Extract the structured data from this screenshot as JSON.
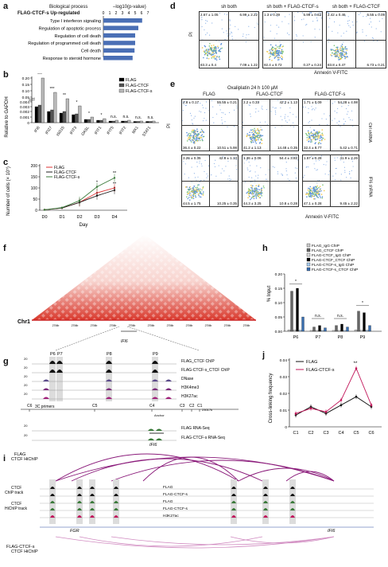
{
  "panels": {
    "a": "a",
    "b": "b",
    "c": "c",
    "d": "d",
    "e": "e",
    "f": "f",
    "g": "g",
    "h": "h",
    "i": "i",
    "j": "j"
  },
  "panel_a": {
    "header_process": "Biological process",
    "header_pval": "–log10(p-value)",
    "row_label": "FLAG-CTCF-s Up-regulated",
    "ticks": [
      "0",
      "1",
      "2",
      "3",
      "4",
      "5",
      "6",
      "7"
    ],
    "chart_data": {
      "type": "bar",
      "categories": [
        "Type I interferon signaling",
        "Regulation of apoptotic process",
        "Regulation of cell death",
        "Regulation of programmed cell death",
        "Cell death",
        "Response to steroid hormone"
      ],
      "values": [
        6.1,
        5.5,
        5.0,
        5.0,
        4.9,
        4.6
      ],
      "xlim": [
        0,
        7
      ],
      "bar_color": "#4a6fb5"
    }
  },
  "panel_b": {
    "ylabel": "Relative to GAPDH",
    "yticks": [
      "0.20",
      "0.15",
      "0.10",
      "0.05",
      "0.004",
      "0.003",
      "0.002",
      "0.001",
      "0"
    ],
    "legend": [
      "FLAG",
      "FLAG-CTCF",
      "FLAG-CTCF-s"
    ],
    "genes": [
      "IFI6",
      "IFI27",
      "ISG15",
      "IFIT3",
      "OASL",
      "IFIT1",
      "IFIT5",
      "IFIT2",
      "MX1",
      "STAT1"
    ],
    "sig": [
      "***",
      "***",
      "**",
      "*",
      "*",
      "*",
      "n.s.",
      "n.s.",
      "n.s.",
      "n.s."
    ],
    "colors": {
      "flag": "#000000",
      "ctcf": "#555555",
      "ctcfs": "#bbbbbb"
    }
  },
  "panel_c": {
    "ylabel": "Number of cells (× 10⁵)",
    "xlabel": "Day",
    "legend": [
      "FLAG",
      "FLAG-CTCF",
      "FLAG-CTCF-s"
    ],
    "sig": [
      "**",
      "*",
      "**",
      "*"
    ],
    "chart_data": {
      "type": "line",
      "x": [
        "D0",
        "D1",
        "D2",
        "D3",
        "D4"
      ],
      "yticks": [
        0,
        50,
        100,
        150,
        200
      ],
      "ylim": [
        0,
        200
      ],
      "series": [
        {
          "name": "FLAG",
          "values": [
            2,
            10,
            35,
            78,
            100
          ],
          "color": "#d33"
        },
        {
          "name": "FLAG-CTCF",
          "values": [
            2,
            10,
            35,
            65,
            90
          ],
          "color": "#222"
        },
        {
          "name": "FLAG-CTCF-s",
          "values": [
            2,
            12,
            43,
            105,
            145
          ],
          "color": "#3a7a3a"
        }
      ]
    }
  },
  "panel_d": {
    "titles": [
      "sh both",
      "sh both + FLAG-CTCF-s",
      "sh both + FLAG-CTCF"
    ],
    "ylabel": "PI",
    "xlabel": "Annexin V-FITC",
    "quads": [
      [
        "2.67 ± 1.05",
        "6.99 ± 2.22",
        "83.3 ± 0.4",
        "7.09 ± 1.22"
      ],
      [
        "1.3 ± 0.39",
        "5.99 ± 0.62",
        "92.4 ± 0.72",
        "0.27 ± 0.24"
      ],
      [
        "2.42 ± 0.46",
        "6.55 ± 0.05",
        "83.8 ± 0.47",
        "6.73 ± 0.21"
      ]
    ]
  },
  "panel_e": {
    "treatment": "Oxaliplatin 24 h 100 μM",
    "titles": [
      "FLAG",
      "FLAG-CTCF",
      "FLAG-CTCF-s"
    ],
    "rows": [
      "Ctrl shRNA",
      "IFI6 shRNA"
    ],
    "ylabel": "PI",
    "xlabel": "Annexin V-FITC",
    "quads": [
      [
        [
          "2.8 ± 0.17",
          "55.55 ± 0.21",
          "36.4 ± 0.22",
          "10.51 ± 5.98"
        ],
        [
          "2.2 ± 0.33",
          "42.2 ± 1.13",
          "41.2 ± 1.13",
          "14.48 ± 0.35"
        ],
        [
          "1.71 ± 0.09",
          "54.28 ± 4.98",
          "32.4 ± 8.77",
          "5.42 ± 0.71"
        ]
      ],
      [
        [
          "3.26 ± 0.35",
          "42.8 ± 1.13",
          "44.5 ± 1.75",
          "10.25 ± 0.35"
        ],
        [
          "1.36 ± 0.06",
          "54.4 ± 3.82",
          "44.3 ± 3.25",
          "10.8 ± 0.28"
        ],
        [
          "1.57 ± 0.28",
          "41.9 ± 2.26",
          "47.1 ± 0.28",
          "9.45 ± 2.22"
        ]
      ]
    ]
  },
  "panel_f": {
    "chr": "Chr1",
    "coords": [
      "27Mb",
      "27Mb",
      "27Mb",
      "27Mb",
      "27Mb",
      "27Mb",
      "27Mb",
      "27Mb",
      "27Mb",
      "27Mb",
      "27Mb"
    ],
    "gene": "IFI6"
  },
  "panel_g": {
    "peaks": [
      "P6",
      "P7",
      "P8",
      "P9"
    ],
    "tracks": [
      "FLAG_CTCF ChIP",
      "FLAG-CTCF-s_CTCF ChIP",
      "DNase",
      "H3K4me3",
      "H3K27ac",
      "FLAG RNA-Seq",
      "FLAG-CTCF-s RNA-Seq"
    ],
    "scales": [
      "20",
      "20",
      "20",
      "20",
      "20",
      "20",
      "20"
    ],
    "primers_label": "3C primers",
    "primers": [
      "C6",
      "C5",
      "C4",
      "C3",
      "C2",
      "C1"
    ],
    "anchor": "Anchor",
    "coord_end": "23017k",
    "gene": "IFI6"
  },
  "panel_h": {
    "ylabel": "% Input",
    "legend": [
      "FLAG_IgG ChIP",
      "FLAG_CTCF ChIP",
      "FLAG-CTCF_IgG ChIP",
      "FLAG-CTCF_CTCF ChIP",
      "FLAG-CTCF-s_IgG ChIP",
      "FLAG-CTCF-s_CTCF ChIP"
    ],
    "yticks": [
      "0.20",
      "0.15",
      "0.10",
      "0.05",
      "0.00"
    ],
    "sig": [
      "*",
      "n.s.",
      "n.s.",
      "*"
    ],
    "chart_data": {
      "type": "bar",
      "categories": [
        "P6",
        "P7",
        "P8",
        "P9"
      ],
      "ylim": [
        0,
        0.2
      ],
      "series": [
        {
          "name": "FLAG_IgG ChIP",
          "values": [
            0.005,
            0.003,
            0.003,
            0.005
          ],
          "color": "#cccccc"
        },
        {
          "name": "FLAG_CTCF ChIP",
          "values": [
            0.14,
            0.015,
            0.02,
            0.07
          ],
          "color": "#666666"
        },
        {
          "name": "FLAG-CTCF_IgG ChIP",
          "values": [
            0.005,
            0.003,
            0.003,
            0.004
          ],
          "color": "#dddddd"
        },
        {
          "name": "FLAG-CTCF_CTCF ChIP",
          "values": [
            0.15,
            0.02,
            0.025,
            0.065
          ],
          "color": "#000000"
        },
        {
          "name": "FLAG-CTCF-s_IgG ChIP",
          "values": [
            0.004,
            0.003,
            0.003,
            0.004
          ],
          "color": "#aaccee"
        },
        {
          "name": "FLAG-CTCF-s_CTCF ChIP",
          "values": [
            0.05,
            0.012,
            0.015,
            0.02
          ],
          "color": "#3a6fb0"
        }
      ]
    }
  },
  "panel_i": {
    "top_label": [
      "FLAG",
      "CTCF HiChIP"
    ],
    "chip_label": [
      "CTCF",
      "ChIP track"
    ],
    "hichip_label": [
      "CTCF",
      "HiChIP track"
    ],
    "tracks": [
      "FLAG",
      "FLAG-CTCF-s",
      "FLAG",
      "FLAG-CTCF-s",
      "H3K27ac"
    ],
    "genes": [
      "FGR",
      "IFI6"
    ],
    "bottom_label": [
      "FLAG-CTCF-s",
      "CTCF HiChIP"
    ]
  },
  "panel_j": {
    "ylabel": "Cross-linking frequency",
    "legend": [
      "FLAG",
      "FLAG-CTCF-s"
    ],
    "sig": "**",
    "chart_data": {
      "type": "line",
      "x": [
        "C1",
        "C2",
        "C3",
        "C4",
        "C5",
        "C6"
      ],
      "yticks": [
        0,
        0.01,
        0.02,
        0.03,
        0.04
      ],
      "ylim": [
        0,
        0.04
      ],
      "series": [
        {
          "name": "FLAG",
          "values": [
            0.007,
            0.012,
            0.008,
            0.013,
            0.018,
            0.012
          ],
          "color": "#111111"
        },
        {
          "name": "FLAG-CTCF-s",
          "values": [
            0.008,
            0.011,
            0.009,
            0.016,
            0.035,
            0.013
          ],
          "color": "#c2185b"
        }
      ]
    }
  }
}
